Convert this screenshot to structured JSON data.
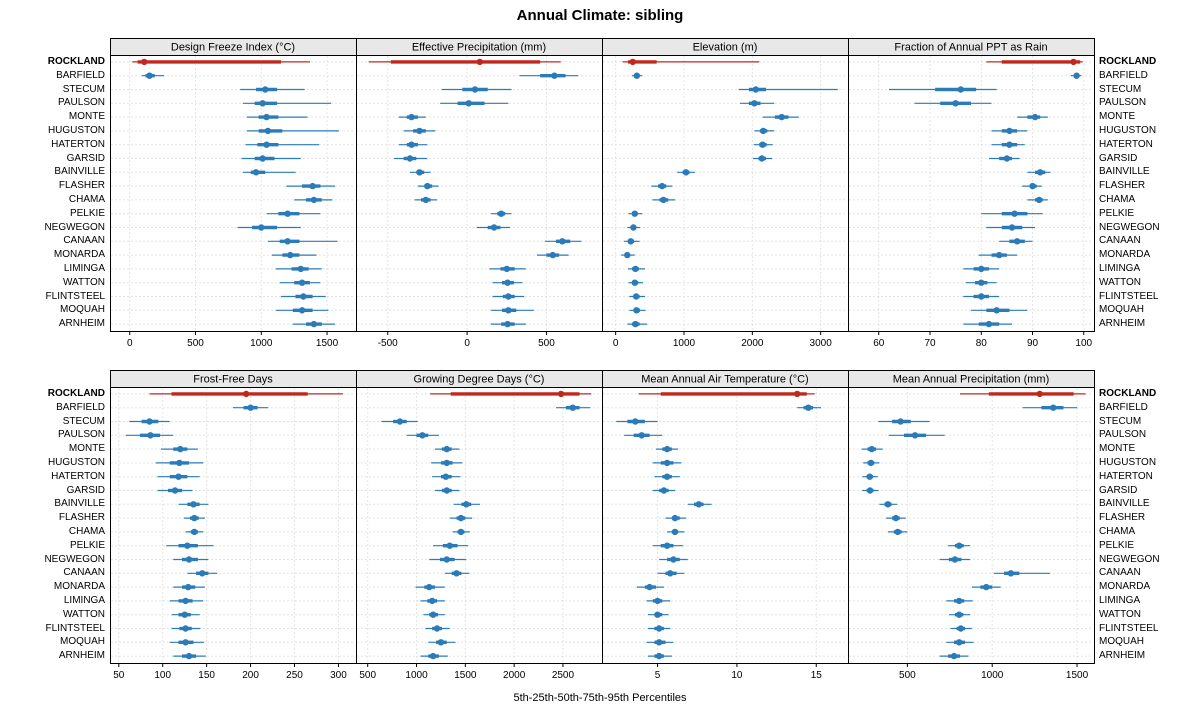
{
  "title": "Annual Climate: sibling",
  "footer": "5th-25th-50th-75th-95th Percentiles",
  "highlight_station": "ROCKLAND",
  "colors": {
    "point_normal": "#2b7bb9",
    "point_highlight": "#c0281e",
    "strip_bg": "#e8e8e8",
    "grid": "#c9c9c9",
    "border": "#000000",
    "text": "#000000"
  },
  "stations": [
    "ROCKLAND",
    "BARFIELD",
    "STECUM",
    "PAULSON",
    "MONTE",
    "HUGUSTON",
    "HATERTON",
    "GARSID",
    "BAINVILLE",
    "FLASHER",
    "CHAMA",
    "PELKIE",
    "NEGWEGON",
    "CANAAN",
    "MONARDA",
    "LIMINGA",
    "WATTON",
    "FLINTSTEEL",
    "MOQUAH",
    "ARNHEIM"
  ],
  "percentiles": [
    5,
    25,
    50,
    75,
    95
  ],
  "chart_data": [
    {
      "type": "scatter",
      "subtype": "percentile-dotplot",
      "title": "Design Freeze Index (°C)",
      "row": 0,
      "xlim": [
        -150,
        1720
      ],
      "ticks": [
        0,
        500,
        1000,
        1500
      ],
      "values": [
        [
          20,
          60,
          110,
          1150,
          1370
        ],
        [
          90,
          120,
          150,
          190,
          260
        ],
        [
          840,
          960,
          1030,
          1120,
          1330
        ],
        [
          860,
          950,
          1010,
          1120,
          1530
        ],
        [
          890,
          980,
          1040,
          1130,
          1350
        ],
        [
          890,
          980,
          1050,
          1160,
          1590
        ],
        [
          880,
          970,
          1040,
          1130,
          1440
        ],
        [
          850,
          950,
          1010,
          1100,
          1300
        ],
        [
          860,
          920,
          960,
          1030,
          1260
        ],
        [
          1190,
          1310,
          1390,
          1450,
          1560
        ],
        [
          1250,
          1340,
          1400,
          1460,
          1540
        ],
        [
          1040,
          1130,
          1200,
          1290,
          1450
        ],
        [
          820,
          930,
          1000,
          1120,
          1300
        ],
        [
          1050,
          1140,
          1200,
          1290,
          1580
        ],
        [
          1080,
          1160,
          1220,
          1290,
          1420
        ],
        [
          1110,
          1230,
          1300,
          1360,
          1460
        ],
        [
          1140,
          1250,
          1310,
          1370,
          1450
        ],
        [
          1150,
          1260,
          1320,
          1390,
          1490
        ],
        [
          1110,
          1240,
          1310,
          1390,
          1510
        ],
        [
          1240,
          1340,
          1400,
          1460,
          1560
        ]
      ]
    },
    {
      "type": "scatter",
      "subtype": "percentile-dotplot",
      "title": "Effective Precipitation (mm)",
      "row": 0,
      "xlim": [
        -700,
        850
      ],
      "ticks": [
        -500,
        0,
        500
      ],
      "values": [
        [
          -620,
          -480,
          80,
          460,
          590
        ],
        [
          330,
          460,
          550,
          620,
          700
        ],
        [
          -160,
          -30,
          50,
          130,
          280
        ],
        [
          -170,
          -60,
          10,
          110,
          260
        ],
        [
          -430,
          -380,
          -350,
          -310,
          -260
        ],
        [
          -400,
          -340,
          -300,
          -260,
          -200
        ],
        [
          -430,
          -380,
          -350,
          -310,
          -250
        ],
        [
          -460,
          -400,
          -360,
          -320,
          -250
        ],
        [
          -360,
          -320,
          -300,
          -270,
          -230
        ],
        [
          -310,
          -270,
          -250,
          -220,
          -180
        ],
        [
          -330,
          -290,
          -260,
          -230,
          -190
        ],
        [
          150,
          190,
          215,
          240,
          280
        ],
        [
          60,
          130,
          170,
          210,
          270
        ],
        [
          490,
          560,
          600,
          650,
          720
        ],
        [
          440,
          500,
          540,
          580,
          640
        ],
        [
          140,
          210,
          250,
          300,
          370
        ],
        [
          160,
          220,
          255,
          295,
          350
        ],
        [
          160,
          225,
          260,
          300,
          360
        ],
        [
          150,
          220,
          260,
          310,
          420
        ],
        [
          150,
          215,
          255,
          300,
          370
        ]
      ]
    },
    {
      "type": "scatter",
      "subtype": "percentile-dotplot",
      "title": "Elevation (m)",
      "row": 0,
      "xlim": [
        -200,
        3400
      ],
      "ticks": [
        0,
        1000,
        2000,
        3000
      ],
      "values": [
        [
          100,
          180,
          250,
          600,
          2100
        ],
        [
          240,
          280,
          310,
          340,
          390
        ],
        [
          1800,
          1950,
          2050,
          2200,
          3250
        ],
        [
          1820,
          1950,
          2030,
          2120,
          2320
        ],
        [
          2150,
          2330,
          2430,
          2530,
          2680
        ],
        [
          2030,
          2110,
          2160,
          2220,
          2320
        ],
        [
          2020,
          2100,
          2150,
          2210,
          2300
        ],
        [
          2010,
          2090,
          2140,
          2200,
          2290
        ],
        [
          900,
          980,
          1030,
          1080,
          1160
        ],
        [
          520,
          620,
          680,
          740,
          830
        ],
        [
          540,
          640,
          700,
          770,
          870
        ],
        [
          190,
          240,
          280,
          320,
          390
        ],
        [
          170,
          220,
          260,
          300,
          360
        ],
        [
          120,
          180,
          220,
          270,
          350
        ],
        [
          80,
          130,
          170,
          210,
          280
        ],
        [
          180,
          240,
          290,
          340,
          430
        ],
        [
          190,
          240,
          280,
          330,
          400
        ],
        [
          200,
          260,
          300,
          350,
          430
        ],
        [
          200,
          260,
          305,
          355,
          440
        ],
        [
          170,
          240,
          290,
          350,
          460
        ]
      ]
    },
    {
      "type": "scatter",
      "subtype": "percentile-dotplot",
      "title": "Fraction of Annual PPT as Rain",
      "row": 0,
      "xlim": [
        54,
        102
      ],
      "ticks": [
        60,
        70,
        80,
        90,
        100
      ],
      "values": [
        [
          81,
          84,
          98,
          99.3,
          99.8
        ],
        [
          97.5,
          98.2,
          98.6,
          99,
          99.5
        ],
        [
          62,
          71,
          76,
          79,
          83
        ],
        [
          67,
          72,
          75,
          78,
          82
        ],
        [
          87,
          89,
          90.5,
          91.5,
          93
        ],
        [
          82,
          84,
          85.5,
          87,
          89
        ],
        [
          82,
          84,
          85.5,
          87,
          88.5
        ],
        [
          81.5,
          83.5,
          85,
          86,
          87.5
        ],
        [
          89,
          90.5,
          91.5,
          92.5,
          93.5
        ],
        [
          88,
          89.5,
          90,
          90.8,
          91.8
        ],
        [
          89,
          90.5,
          91.3,
          92,
          93
        ],
        [
          80,
          84,
          86.5,
          89,
          92
        ],
        [
          81,
          84,
          86,
          88,
          90.5
        ],
        [
          83.5,
          85.5,
          87,
          88.5,
          90
        ],
        [
          79.5,
          82,
          83.5,
          85,
          87
        ],
        [
          76.5,
          78.5,
          80,
          81.5,
          83.5
        ],
        [
          77,
          78.8,
          80,
          81.2,
          83
        ],
        [
          76.5,
          78.5,
          80,
          81.5,
          83.5
        ],
        [
          78,
          81,
          83,
          85.5,
          89
        ],
        [
          76.5,
          79.5,
          81.5,
          83.5,
          86
        ]
      ]
    },
    {
      "type": "scatter",
      "subtype": "percentile-dotplot",
      "title": "Frost-Free Days",
      "row": 1,
      "xlim": [
        40,
        320
      ],
      "ticks": [
        50,
        100,
        150,
        200,
        250,
        300
      ],
      "values": [
        [
          85,
          110,
          195,
          265,
          305
        ],
        [
          180,
          192,
          200,
          208,
          220
        ],
        [
          62,
          76,
          85,
          95,
          108
        ],
        [
          58,
          74,
          86,
          97,
          112
        ],
        [
          98,
          112,
          120,
          128,
          140
        ],
        [
          92,
          108,
          119,
          130,
          146
        ],
        [
          94,
          108,
          118,
          128,
          142
        ],
        [
          94,
          106,
          114,
          122,
          134
        ],
        [
          118,
          128,
          135,
          142,
          152
        ],
        [
          124,
          131,
          136,
          141,
          148
        ],
        [
          126,
          132,
          136,
          140,
          146
        ],
        [
          104,
          118,
          128,
          140,
          158
        ],
        [
          112,
          122,
          130,
          140,
          152
        ],
        [
          128,
          138,
          145,
          152,
          162
        ],
        [
          112,
          122,
          129,
          137,
          148
        ],
        [
          108,
          118,
          126,
          134,
          146
        ],
        [
          110,
          118,
          125,
          132,
          142
        ],
        [
          110,
          119,
          126,
          133,
          143
        ],
        [
          108,
          118,
          126,
          135,
          147
        ],
        [
          112,
          122,
          130,
          138,
          149
        ]
      ]
    },
    {
      "type": "scatter",
      "subtype": "percentile-dotplot",
      "title": "Growing Degree Days (°C)",
      "row": 1,
      "xlim": [
        380,
        2900
      ],
      "ticks": [
        500,
        1000,
        1500,
        2000,
        2500
      ],
      "values": [
        [
          1140,
          1350,
          2480,
          2670,
          2790
        ],
        [
          2430,
          2530,
          2600,
          2670,
          2780
        ],
        [
          640,
          760,
          830,
          900,
          1010
        ],
        [
          900,
          1000,
          1060,
          1120,
          1230
        ],
        [
          1190,
          1260,
          1310,
          1360,
          1440
        ],
        [
          1150,
          1250,
          1310,
          1370,
          1470
        ],
        [
          1160,
          1250,
          1300,
          1360,
          1450
        ],
        [
          1190,
          1260,
          1310,
          1360,
          1440
        ],
        [
          1380,
          1460,
          1510,
          1560,
          1650
        ],
        [
          1340,
          1410,
          1455,
          1500,
          1570
        ],
        [
          1370,
          1420,
          1455,
          1490,
          1545
        ],
        [
          1170,
          1270,
          1340,
          1420,
          1530
        ],
        [
          1130,
          1240,
          1310,
          1390,
          1510
        ],
        [
          1290,
          1360,
          1410,
          1460,
          1540
        ],
        [
          990,
          1080,
          1130,
          1190,
          1290
        ],
        [
          1040,
          1110,
          1160,
          1210,
          1290
        ],
        [
          1070,
          1130,
          1170,
          1220,
          1290
        ],
        [
          1090,
          1160,
          1210,
          1260,
          1340
        ],
        [
          1120,
          1200,
          1250,
          1310,
          1400
        ],
        [
          1040,
          1120,
          1170,
          1230,
          1320
        ]
      ]
    },
    {
      "type": "scatter",
      "subtype": "percentile-dotplot",
      "title": "Mean Annual Air Temperature (°C)",
      "row": 1,
      "xlim": [
        1.5,
        17
      ],
      "ticks": [
        5,
        10,
        15
      ],
      "values": [
        [
          3.8,
          5.2,
          13.8,
          14.4,
          14.9
        ],
        [
          13.8,
          14.2,
          14.5,
          14.8,
          15.3
        ],
        [
          2.4,
          3.1,
          3.6,
          4.2,
          5.0
        ],
        [
          2.9,
          3.5,
          4.0,
          4.5,
          5.3
        ],
        [
          4.9,
          5.3,
          5.6,
          5.9,
          6.3
        ],
        [
          4.7,
          5.2,
          5.6,
          6.0,
          6.5
        ],
        [
          4.8,
          5.3,
          5.6,
          5.9,
          6.4
        ],
        [
          4.7,
          5.1,
          5.4,
          5.7,
          6.1
        ],
        [
          6.9,
          7.3,
          7.6,
          7.9,
          8.4
        ],
        [
          5.5,
          5.9,
          6.1,
          6.4,
          6.8
        ],
        [
          5.6,
          5.9,
          6.1,
          6.3,
          6.7
        ],
        [
          4.7,
          5.2,
          5.6,
          6.0,
          6.6
        ],
        [
          5.1,
          5.6,
          6.0,
          6.4,
          6.9
        ],
        [
          5.0,
          5.5,
          5.8,
          6.2,
          6.7
        ],
        [
          3.7,
          4.2,
          4.5,
          4.9,
          5.4
        ],
        [
          4.3,
          4.7,
          5.0,
          5.3,
          5.8
        ],
        [
          4.4,
          4.8,
          5.0,
          5.3,
          5.7
        ],
        [
          4.4,
          4.8,
          5.1,
          5.4,
          5.8
        ],
        [
          4.3,
          4.8,
          5.1,
          5.5,
          6.0
        ],
        [
          4.4,
          4.8,
          5.1,
          5.4,
          5.9
        ]
      ]
    },
    {
      "type": "scatter",
      "subtype": "percentile-dotplot",
      "title": "Mean Annual Precipitation (mm)",
      "row": 1,
      "xlim": [
        150,
        1600
      ],
      "ticks": [
        500,
        1000,
        1500
      ],
      "values": [
        [
          810,
          980,
          1280,
          1480,
          1550
        ],
        [
          1180,
          1290,
          1360,
          1420,
          1500
        ],
        [
          330,
          410,
          460,
          520,
          630
        ],
        [
          390,
          480,
          545,
          610,
          720
        ],
        [
          230,
          265,
          290,
          315,
          355
        ],
        [
          240,
          265,
          285,
          305,
          335
        ],
        [
          235,
          260,
          278,
          297,
          325
        ],
        [
          235,
          260,
          280,
          300,
          330
        ],
        [
          335,
          365,
          385,
          407,
          440
        ],
        [
          375,
          410,
          432,
          455,
          490
        ],
        [
          385,
          420,
          443,
          466,
          500
        ],
        [
          740,
          780,
          805,
          832,
          870
        ],
        [
          690,
          745,
          780,
          818,
          870
        ],
        [
          1010,
          1070,
          1110,
          1160,
          1340
        ],
        [
          880,
          930,
          965,
          1000,
          1050
        ],
        [
          730,
          775,
          805,
          835,
          885
        ],
        [
          745,
          780,
          805,
          830,
          870
        ],
        [
          755,
          790,
          815,
          840,
          880
        ],
        [
          730,
          775,
          805,
          840,
          890
        ],
        [
          690,
          740,
          775,
          810,
          860
        ]
      ]
    }
  ]
}
